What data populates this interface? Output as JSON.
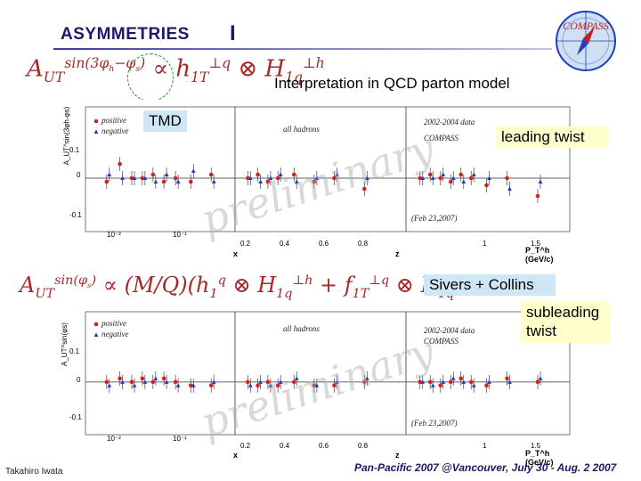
{
  "slide": {
    "title": "ASYMMETRIES",
    "title_roman": "I",
    "interpretation": "Interpretation in  QCD parton model",
    "labels": {
      "tmd": "TMD",
      "leading": "leading twist",
      "sivers": "Sivers + Collins",
      "subleading": "subleading twist"
    },
    "logo_text": "COMPASS",
    "watermark": "preliminary",
    "footer_author": "Takahiro Iwata",
    "footer_conference": "Pan-Pacific  2007 @Vancouver,  July 30 - Aug. 2 2007",
    "colors": {
      "title": "#1a1a66",
      "positive": "#d62020",
      "negative": "#1f3fbf",
      "formula": "#a52a2a"
    }
  },
  "panels": [
    {
      "ylabel": "A_UT^sin(3φh-φs)",
      "legend": [
        "positive",
        "negative"
      ],
      "tag": "all hadrons",
      "data_tag": "2002-2004 data",
      "exp": "COMPASS",
      "date": "(Feb 23,2007)",
      "y_ticks": [
        "0.1",
        "0",
        "-0.1"
      ],
      "x_ticks": [
        "10⁻²",
        "10⁻¹",
        "0.2",
        "0.4",
        "0.6",
        "0.8",
        "1",
        "1.5"
      ],
      "x_labels": [
        "x",
        "z",
        "P_T^h (GeV/c)"
      ]
    },
    {
      "ylabel": "A_UT^sin(φs)",
      "legend": [
        "positive",
        "negative"
      ],
      "tag": "all hadrons",
      "data_tag": "2002-2004 data",
      "exp": "COMPASS",
      "date": "(Feb 23,2007)",
      "y_ticks": [
        "0.1",
        "0",
        "-0.1"
      ],
      "x_ticks": [
        "10⁻²",
        "10⁻¹",
        "0.2",
        "0.4",
        "0.6",
        "0.8",
        "1",
        "1.5"
      ],
      "x_labels": [
        "x",
        "z",
        "P_T^h (GeV/c)"
      ]
    }
  ],
  "chart_data": [
    {
      "type": "scatter",
      "title": "",
      "panels": [
        {
          "xlabel": "x",
          "series": [
            {
              "name": "positive",
              "x": [
                0.006,
                0.009,
                0.013,
                0.018,
                0.025,
                0.035,
                0.05,
                0.08,
                0.15
              ],
              "y": [
                -0.01,
                0.04,
                0.0,
                0.0,
                0.01,
                -0.01,
                0.0,
                -0.01,
                0.01
              ]
            },
            {
              "name": "negative",
              "x": [
                0.006,
                0.009,
                0.013,
                0.018,
                0.025,
                0.035,
                0.05,
                0.08,
                0.15
              ],
              "y": [
                0.01,
                0.0,
                0.0,
                0.0,
                -0.01,
                0.01,
                -0.01,
                0.02,
                -0.01
              ]
            }
          ]
        },
        {
          "xlabel": "z",
          "series": [
            {
              "name": "positive",
              "x": [
                0.22,
                0.27,
                0.32,
                0.37,
                0.45,
                0.55,
                0.65,
                0.8
              ],
              "y": [
                0.0,
                0.01,
                -0.01,
                0.0,
                0.01,
                -0.01,
                0.0,
                -0.03
              ]
            },
            {
              "name": "negative",
              "x": [
                0.22,
                0.27,
                0.32,
                0.37,
                0.45,
                0.55,
                0.65,
                0.8
              ],
              "y": [
                0.0,
                -0.01,
                0.0,
                0.01,
                -0.01,
                0.0,
                0.01,
                0.0
              ]
            }
          ]
        },
        {
          "xlabel": "P_T^h (GeV/c)",
          "series": [
            {
              "name": "positive",
              "x": [
                0.15,
                0.25,
                0.35,
                0.45,
                0.55,
                0.65,
                0.8,
                1.0,
                1.3
              ],
              "y": [
                0.0,
                0.01,
                0.0,
                -0.01,
                0.01,
                0.0,
                -0.02,
                0.0,
                -0.05
              ]
            },
            {
              "name": "negative",
              "x": [
                0.15,
                0.25,
                0.35,
                0.45,
                0.55,
                0.65,
                0.8,
                1.0,
                1.3
              ],
              "y": [
                0.0,
                0.0,
                0.01,
                0.0,
                -0.01,
                0.01,
                0.0,
                -0.03,
                -0.01
              ]
            }
          ]
        }
      ],
      "ylim": [
        -0.15,
        0.2
      ]
    },
    {
      "type": "scatter",
      "title": "",
      "panels": [
        {
          "xlabel": "x",
          "series": [
            {
              "name": "positive",
              "x": [
                0.006,
                0.009,
                0.013,
                0.018,
                0.025,
                0.035,
                0.05,
                0.08,
                0.15
              ],
              "y": [
                0.0,
                0.01,
                0.0,
                0.01,
                0.0,
                0.01,
                0.0,
                -0.01,
                -0.01
              ]
            },
            {
              "name": "negative",
              "x": [
                0.006,
                0.009,
                0.013,
                0.018,
                0.025,
                0.035,
                0.05,
                0.08,
                0.15
              ],
              "y": [
                -0.01,
                0.0,
                -0.01,
                0.0,
                0.01,
                0.0,
                -0.01,
                -0.01,
                0.0
              ]
            }
          ]
        },
        {
          "xlabel": "z",
          "series": [
            {
              "name": "positive",
              "x": [
                0.22,
                0.27,
                0.32,
                0.37,
                0.45,
                0.55,
                0.65,
                0.8
              ],
              "y": [
                0.0,
                -0.01,
                0.0,
                -0.01,
                0.0,
                -0.01,
                -0.01,
                0.0
              ]
            },
            {
              "name": "negative",
              "x": [
                0.22,
                0.27,
                0.32,
                0.37,
                0.45,
                0.55,
                0.65,
                0.8
              ],
              "y": [
                -0.01,
                0.0,
                -0.01,
                0.0,
                0.01,
                -0.01,
                0.0,
                0.01
              ]
            }
          ]
        },
        {
          "xlabel": "P_T^h (GeV/c)",
          "series": [
            {
              "name": "positive",
              "x": [
                0.15,
                0.25,
                0.35,
                0.45,
                0.55,
                0.65,
                0.8,
                1.0,
                1.3
              ],
              "y": [
                0.0,
                0.0,
                -0.01,
                0.0,
                0.01,
                0.0,
                -0.01,
                0.01,
                0.0
              ]
            },
            {
              "name": "negative",
              "x": [
                0.15,
                0.25,
                0.35,
                0.45,
                0.55,
                0.65,
                0.8,
                1.0,
                1.3
              ],
              "y": [
                0.0,
                -0.01,
                0.0,
                0.01,
                0.0,
                -0.01,
                0.0,
                0.0,
                0.01
              ]
            }
          ]
        }
      ],
      "ylim": [
        -0.15,
        0.2
      ]
    }
  ]
}
